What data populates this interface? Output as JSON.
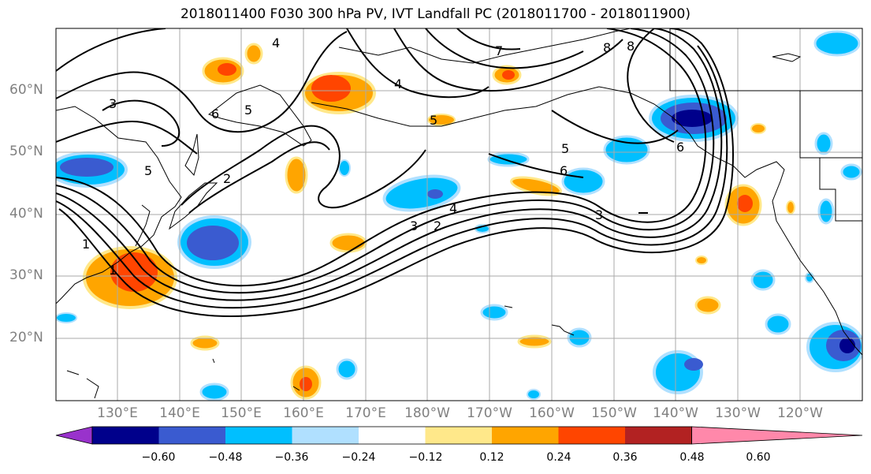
{
  "title": "2018011400 F030 300 hPa PV, IVT Landfall PC (2018011700 - 2018011900)",
  "map": {
    "lat_labels": [
      "60°N",
      "50°N",
      "40°N",
      "30°N",
      "20°N"
    ],
    "lon_labels": [
      "130°E",
      "140°E",
      "150°E",
      "160°E",
      "170°E",
      "180°W",
      "170°W",
      "160°W",
      "150°W",
      "140°W",
      "130°W",
      "120°W"
    ],
    "contour_labels": [
      "1",
      "1",
      "2",
      "2",
      "3",
      "3",
      "3",
      "4",
      "4",
      "4",
      "5",
      "5",
      "5",
      "5",
      "6",
      "6",
      "6",
      "7",
      "8",
      "8"
    ],
    "colors": {
      "pos_light": "#ffe88a",
      "pos_mid": "#ffa500",
      "pos_strong": "#ff4500",
      "neg_light": "#b0e0ff",
      "neg_mid": "#00bfff",
      "neg_strong": "#3a5bd0",
      "neg_max": "#00008b"
    }
  },
  "colorbar": {
    "tick_labels": [
      "−0.60",
      "−0.48",
      "−0.36",
      "−0.24",
      "−0.12",
      "0.12",
      "0.24",
      "0.36",
      "0.48",
      "0.60"
    ],
    "colors": [
      "#9932cc",
      "#00008b",
      "#3a5bd0",
      "#00bfff",
      "#b0e0ff",
      "#ffffff",
      "#ffe88a",
      "#ffa500",
      "#ff4500",
      "#b22222",
      "#ff88aa"
    ]
  }
}
